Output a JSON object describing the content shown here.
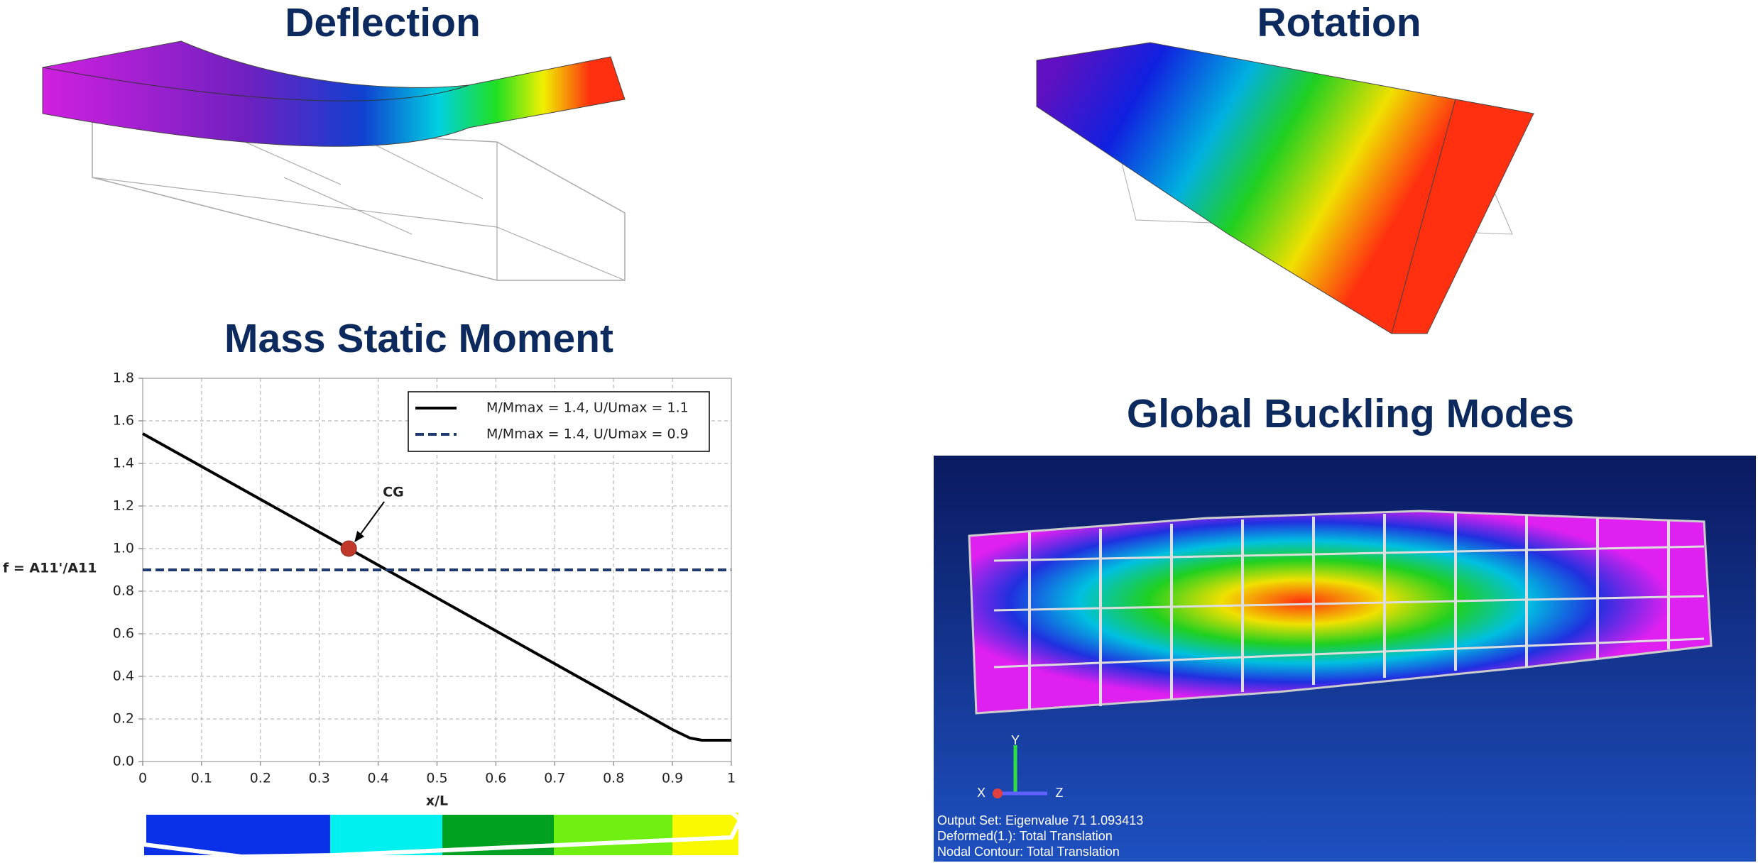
{
  "headings": {
    "deflection": "Deflection",
    "rotation": "Rotation",
    "mass": "Mass Static Moment",
    "buckling": "Global Buckling Modes"
  },
  "buckling_info": {
    "lines": [
      "Output Set: Eigenvalue 71 1.093413",
      "Deformed(1.): Total Translation",
      "Nodal Contour: Total Translation"
    ],
    "axes": [
      "X",
      "Y",
      "Z"
    ]
  },
  "chart_data": {
    "type": "line",
    "xlabel": "x/L",
    "ylabel": "f = A11'/A11",
    "xlim": [
      0,
      1
    ],
    "ylim": [
      0,
      1.8
    ],
    "xticks": [
      {
        "value": 0,
        "label": "0"
      },
      0.1,
      0.2,
      0.3,
      0.4,
      0.5,
      0.6,
      0.7,
      0.8,
      0.9,
      {
        "value": 1,
        "label": "1"
      }
    ],
    "yticks": [
      {
        "value": 0,
        "label": "0.0"
      },
      0.2,
      0.4,
      0.6,
      0.8,
      {
        "value": 1,
        "label": "1.0"
      },
      1.2,
      1.4,
      1.6,
      1.8
    ],
    "grid": true,
    "legend": "upper right",
    "series": [
      {
        "name": "M/Mmax = 1.4, U/Umax = 1.1",
        "color": "#000000",
        "dash": false,
        "x": [
          0,
          0.35,
          0.9,
          0.93,
          0.95,
          1
        ],
        "values": [
          1.54,
          1.0,
          0.15,
          0.11,
          0.1,
          0.1
        ]
      },
      {
        "name": "M/Mmax = 1.4, U/Umax = 0.9",
        "color": "#1f3a6e",
        "dash": true,
        "x": [
          0,
          1
        ],
        "values": [
          0.9,
          0.9
        ]
      }
    ],
    "annotations": [
      {
        "text": "CG",
        "x": 0.35,
        "y": 1.0
      }
    ]
  }
}
